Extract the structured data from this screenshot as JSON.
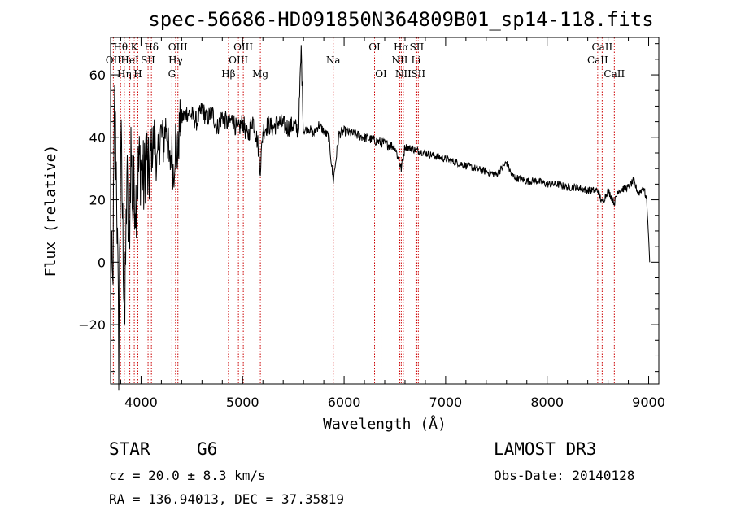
{
  "chart_data": {
    "type": "line",
    "title": "spec-56686-HD091850N364809B01_sp14-118.fits",
    "xlabel": "Wavelength (Å)",
    "ylabel": "Flux (relative)",
    "xlim": [
      3700,
      9100
    ],
    "ylim": [
      -39,
      72
    ],
    "x_ticks": [
      4000,
      5000,
      6000,
      7000,
      8000,
      9000
    ],
    "y_ticks": [
      -20,
      0,
      20,
      40,
      60
    ],
    "y_tick_labels": [
      "−20",
      "0",
      "20",
      "40",
      "60"
    ],
    "x_tick_labels": [
      "4000",
      "5000",
      "6000",
      "7000",
      "8000",
      "9000"
    ],
    "series": [
      {
        "name": "spectrum",
        "x": [
          3700,
          3720,
          3740,
          3760,
          3780,
          3800,
          3820,
          3840,
          3860,
          3880,
          3900,
          3920,
          3933,
          3950,
          3968,
          3990,
          4010,
          4030,
          4050,
          4070,
          4100,
          4130,
          4160,
          4190,
          4220,
          4250,
          4280,
          4300,
          4320,
          4340,
          4360,
          4380,
          4400,
          4450,
          4500,
          4550,
          4600,
          4650,
          4700,
          4750,
          4800,
          4861,
          4900,
          4950,
          5000,
          5050,
          5100,
          5150,
          5175,
          5200,
          5250,
          5300,
          5350,
          5400,
          5450,
          5500,
          5550,
          5577,
          5600,
          5650,
          5700,
          5750,
          5800,
          5850,
          5893,
          5950,
          6000,
          6100,
          6200,
          6300,
          6400,
          6500,
          6563,
          6600,
          6700,
          6800,
          6900,
          7000,
          7100,
          7200,
          7300,
          7400,
          7500,
          7600,
          7650,
          7700,
          7800,
          7900,
          8000,
          8100,
          8200,
          8300,
          8400,
          8500,
          8542,
          8600,
          8662,
          8700,
          8800,
          8850,
          8900,
          8950,
          8980,
          9000,
          9010
        ],
        "y": [
          5,
          -10,
          50,
          25,
          -30,
          40,
          10,
          -20,
          30,
          0,
          38,
          15,
          25,
          20,
          28,
          32,
          30,
          24,
          38,
          25,
          35,
          40,
          30,
          42,
          38,
          45,
          30,
          36,
          28,
          40,
          33,
          44,
          46,
          48,
          47,
          45,
          49,
          46,
          48,
          43,
          47,
          44,
          46,
          42,
          45,
          40,
          46,
          38,
          30,
          42,
          44,
          43,
          45,
          44,
          43,
          44,
          42,
          68,
          42,
          43,
          41,
          44,
          42,
          40,
          26,
          41,
          42,
          41,
          40,
          39,
          38,
          37,
          30,
          37,
          36,
          35,
          34,
          33,
          32,
          31,
          30,
          29,
          28,
          32,
          28,
          27,
          26,
          26,
          25,
          25,
          24,
          24,
          23,
          23,
          19,
          23,
          19,
          23,
          24,
          26,
          22,
          24,
          20,
          8,
          0
        ]
      }
    ],
    "lines": [
      {
        "name": "O II",
        "wavelength": 3727,
        "label": "OII",
        "row": 2
      },
      {
        "name": "H theta",
        "wavelength": 3798,
        "label": "Hθ",
        "row": 1
      },
      {
        "name": "H eta",
        "wavelength": 3835,
        "label": "Hη",
        "row": 3
      },
      {
        "name": "He I",
        "wavelength": 3889,
        "label": "HeI",
        "row": 2
      },
      {
        "name": "K",
        "wavelength": 3933,
        "label": "K",
        "row": 1
      },
      {
        "name": "H",
        "wavelength": 3968,
        "label": "H",
        "row": 3
      },
      {
        "name": "S II",
        "wavelength": 4069,
        "label": "SII",
        "row": 2
      },
      {
        "name": "H delta",
        "wavelength": 4102,
        "label": "Hδ",
        "row": 1
      },
      {
        "name": "G",
        "wavelength": 4304,
        "label": "G",
        "row": 3
      },
      {
        "name": "H gamma",
        "wavelength": 4340,
        "label": "Hγ",
        "row": 2
      },
      {
        "name": "O III 4363",
        "wavelength": 4363,
        "label": "OIII",
        "row": 1
      },
      {
        "name": "H beta",
        "wavelength": 4861,
        "label": "Hβ",
        "row": 3
      },
      {
        "name": "O III 4959",
        "wavelength": 4959,
        "label": "OIII",
        "row": 2
      },
      {
        "name": "O III 5007",
        "wavelength": 5007,
        "label": "OIII",
        "row": 1
      },
      {
        "name": "Mg",
        "wavelength": 5175,
        "label": "Mg",
        "row": 3
      },
      {
        "name": "Na",
        "wavelength": 5893,
        "label": "Na",
        "row": 2
      },
      {
        "name": "O I 6300",
        "wavelength": 6300,
        "label": "OI",
        "row": 1
      },
      {
        "name": "O I 6364",
        "wavelength": 6364,
        "label": "OI",
        "row": 3
      },
      {
        "name": "N II 6548",
        "wavelength": 6548,
        "label": "NII",
        "row": 2
      },
      {
        "name": "H alpha",
        "wavelength": 6563,
        "label": "Hα",
        "row": 1
      },
      {
        "name": "N II 6583",
        "wavelength": 6583,
        "label": "NII",
        "row": 3
      },
      {
        "name": "Li",
        "wavelength": 6708,
        "label": "Li",
        "row": 2
      },
      {
        "name": "S II 6716",
        "wavelength": 6716,
        "label": "SII",
        "row": 1
      },
      {
        "name": "S II 6731",
        "wavelength": 6731,
        "label": "SII",
        "row": 3
      },
      {
        "name": "Ca II 8498",
        "wavelength": 8498,
        "label": "CaII",
        "row": 2
      },
      {
        "name": "Ca II 8542",
        "wavelength": 8542,
        "label": "CaII",
        "row": 1
      },
      {
        "name": "Ca II 8662",
        "wavelength": 8662,
        "label": "CaII",
        "row": 3
      }
    ],
    "colors": {
      "line_markers": "#cc0000",
      "spectrum": "#000000"
    },
    "grid": false
  },
  "info": {
    "object_class": "STAR",
    "subclass": "G6",
    "survey": "LAMOST DR3",
    "redshift": "cz = 20.0 ± 8.3 km/s",
    "obs_date": "Obs-Date: 20140128",
    "coords": "RA = 136.94013, DEC =  37.35819"
  }
}
